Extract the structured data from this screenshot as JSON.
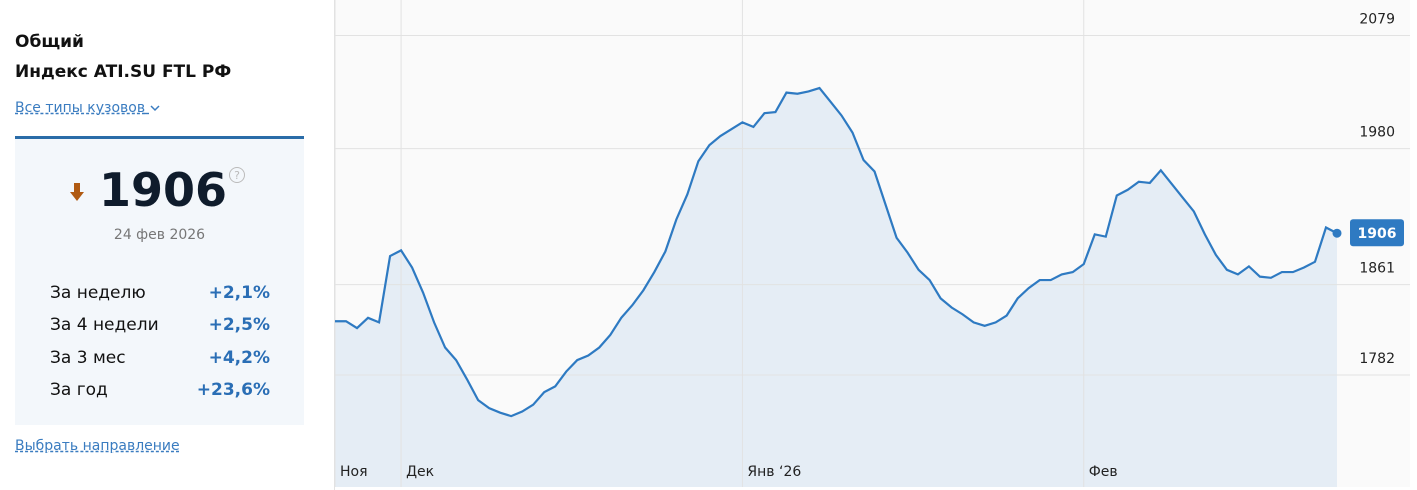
{
  "panel": {
    "title": "Общий",
    "subtitle": "Индекс ATI.SU FTL РФ",
    "body_filter": "Все типы кузовов",
    "value": "1906",
    "date": "24 фев 2026",
    "stats": [
      {
        "label": "За неделю",
        "value": "+2,1%"
      },
      {
        "label": "За 4 недели",
        "value": "+2,5%"
      },
      {
        "label": "За 3 мес",
        "value": "+4,2%"
      },
      {
        "label": "За год",
        "value": "+23,6%"
      }
    ],
    "direction_link": "Выбрать направление"
  },
  "chart_data": {
    "type": "area",
    "color": "#2e7ac2",
    "fill": "#e5edf5",
    "grid": true,
    "values": [
      1829,
      1829,
      1823,
      1832,
      1828,
      1886,
      1891,
      1876,
      1854,
      1828,
      1806,
      1795,
      1778,
      1760,
      1753,
      1749,
      1746,
      1750,
      1756,
      1767,
      1772,
      1785,
      1795,
      1799,
      1806,
      1817,
      1832,
      1843,
      1856,
      1872,
      1890,
      1918,
      1940,
      1969,
      1983,
      1991,
      1997,
      2003,
      1999,
      2011,
      2012,
      2029,
      2028,
      2030,
      2033,
      2021,
      2009,
      1994,
      1970,
      1960,
      1931,
      1902,
      1889,
      1874,
      1865,
      1849,
      1841,
      1835,
      1828,
      1825,
      1828,
      1834,
      1849,
      1858,
      1865,
      1865,
      1870,
      1872,
      1879,
      1905,
      1903,
      1939,
      1944,
      1951,
      1950,
      1961,
      1949,
      1937,
      1925,
      1905,
      1887,
      1874,
      1870,
      1877,
      1868,
      1867,
      1872,
      1872,
      1876,
      1881,
      1911,
      1906
    ],
    "xlim": [
      0,
      91
    ],
    "xticks": [
      {
        "value": 0,
        "label": "Ноя"
      },
      {
        "value": 6,
        "label": "Дек"
      },
      {
        "value": 37,
        "label": "Янв ‘26"
      },
      {
        "value": 68,
        "label": "Фев"
      }
    ],
    "ylim": [
      1684,
      2110
    ],
    "yticks": [
      1782,
      1861,
      1980,
      2079
    ]
  }
}
